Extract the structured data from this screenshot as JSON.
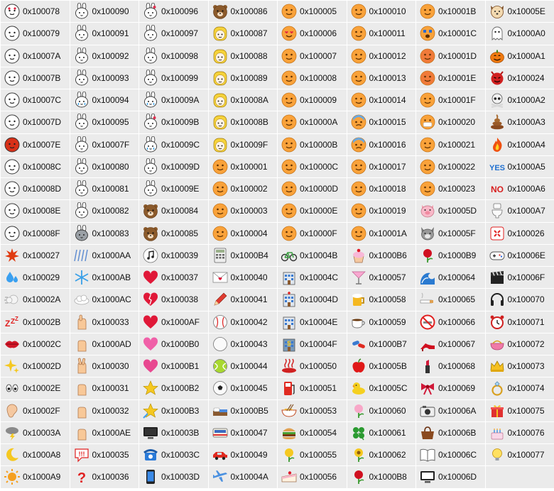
{
  "columns": [
    [
      "0x100078",
      "0x100079",
      "0x10007A",
      "0x10007B",
      "0x10007C",
      "0x10007D",
      "0x10007E",
      "0x10008C",
      "0x10008D",
      "0x10008E",
      "0x10008F",
      "0x100027",
      "0x100029",
      "0x10002A",
      "0x10002B",
      "0x10002C",
      "0x10002D",
      "0x10002E",
      "0x10002F",
      "0x10003A",
      "0x1000A8",
      "0x1000A9"
    ],
    [
      "0x100090",
      "0x100091",
      "0x100092",
      "0x100093",
      "0x100094",
      "0x100095",
      "0x10007F",
      "0x100080",
      "0x100081",
      "0x100082",
      "0x100083",
      "0x1000AA",
      "0x1000AB",
      "0x1000AC",
      "0x100033",
      "0x1000AD",
      "0x100030",
      "0x100031",
      "0x100032",
      "0x1000AE",
      "0x100035",
      "0x100036"
    ],
    [
      "0x100096",
      "0x100097",
      "0x100098",
      "0x100099",
      "0x10009A",
      "0x10009B",
      "0x10009C",
      "0x10009D",
      "0x10009E",
      "0x100084",
      "0x100085",
      "0x100039",
      "0x100037",
      "0x100038",
      "0x1000AF",
      "0x1000B0",
      "0x1000B1",
      "0x1000B2",
      "0x1000B3",
      "0x10003B",
      "0x10003C",
      "0x10003D"
    ],
    [
      "0x100086",
      "0x100087",
      "0x100088",
      "0x100089",
      "0x10008A",
      "0x10008B",
      "0x10009F",
      "0x100001",
      "0x100002",
      "0x100003",
      "0x100004",
      "0x1000B4",
      "0x100040",
      "0x100041",
      "0x100042",
      "0x100043",
      "0x100044",
      "0x100045",
      "0x1000B5",
      "0x100047",
      "0x100049",
      "0x10004A"
    ],
    [
      "0x100005",
      "0x100006",
      "0x100007",
      "0x100008",
      "0x100009",
      "0x10000A",
      "0x10000B",
      "0x10000C",
      "0x10000D",
      "0x10000E",
      "0x10000F",
      "0x10004B",
      "0x10004C",
      "0x10004D",
      "0x10004E",
      "0x10004F",
      "0x100050",
      "0x100051",
      "0x100053",
      "0x100054",
      "0x100055",
      "0x100056"
    ],
    [
      "0x100010",
      "0x100011",
      "0x100012",
      "0x100013",
      "0x100014",
      "0x100015",
      "0x100016",
      "0x100017",
      "0x100018",
      "0x100019",
      "0x10001A",
      "0x1000B6",
      "0x100057",
      "0x100058",
      "0x100059",
      "0x1000B7",
      "0x10005B",
      "0x10005C",
      "0x100060",
      "0x100061",
      "0x100062",
      "0x1000B8"
    ],
    [
      "0x10001B",
      "0x10001C",
      "0x10001D",
      "0x10001E",
      "0x10001F",
      "0x100020",
      "0x100021",
      "0x100022",
      "0x100023",
      "0x10005D",
      "0x10005F",
      "0x1000B9",
      "0x100064",
      "0x100065",
      "0x100066",
      "0x100067",
      "0x100068",
      "0x100069",
      "0x10006A",
      "0x10006B",
      "0x10006C",
      "0x10006D"
    ],
    [
      "0x10005E",
      "0x1000A0",
      "0x1000A1",
      "0x100024",
      "0x1000A2",
      "0x1000A3",
      "0x1000A4",
      "0x1000A5",
      "0x1000A6",
      "0x1000A7",
      "0x100026",
      "0x10006E",
      "0x10006F",
      "0x100070",
      "0x100071",
      "0x100072",
      "0x100073",
      "0x100074",
      "0x100075",
      "0x100076",
      "0x100077",
      ""
    ]
  ],
  "icons": [
    [
      "cony-heart-eyes-icon",
      "cony-angry-icon",
      "cony-crying-icon",
      "cony-cheering-icon",
      "cony-shocked-icon",
      "cony-scream-icon",
      "cony-red-angry-icon",
      "cony-sleepy-icon",
      "cony-smirk-icon",
      "cony-confused-icon",
      "cony-worried-icon",
      "explosion-icon",
      "sweat-drops-icon",
      "dash-cloud-icon",
      "zzz-icon",
      "lips-icon",
      "sparkles-icon",
      "eyes-icon",
      "ear-icon",
      "thunder-cloud-icon",
      "crescent-moon-icon",
      "sun-icon"
    ],
    [
      "cony-white-neutral-icon",
      "cony-white-shock-icon",
      "cony-white-sad-icon",
      "cony-white-nervous-icon",
      "cony-white-tears-icon",
      "cony-white-smile-icon",
      "bunny-angry-icon",
      "bunny-happy-icon",
      "bunny-wink-icon",
      "bunny-tongue-icon",
      "moon-bunny-icon",
      "rain-icon",
      "snowflake-icon",
      "cloud-icon",
      "thumbs-up-icon",
      "pointing-hand-icon",
      "victory-hand-icon",
      "open-hand-icon",
      "fist-icon",
      "clapping-hands-icon",
      "exclamation-speech-icon",
      "question-mark-icon"
    ],
    [
      "bunny-heart-icon",
      "bunny-sweat-icon",
      "bunny-surprised-icon",
      "bunny-dizzy-icon",
      "bunny-happy-tears-icon",
      "bunny-love-icon",
      "bunny-crying-icon",
      "bunny-smile-icon",
      "bunny-shock-icon",
      "brown-bear-icon",
      "brown-bear-surprised-icon",
      "music-note-bubble-icon",
      "heart-speech-icon",
      "broken-heart-icon",
      "red-heart-icon",
      "pink-hearts-icon",
      "double-hearts-icon",
      "yellow-star-icon",
      "shooting-star-icon",
      "computer-monitor-icon",
      "telephone-icon",
      "smartphone-icon"
    ],
    [
      "brown-bear-face-icon",
      "blonde-girl-icon",
      "blonde-girl-surprised-icon",
      "blonde-girl-scream-icon",
      "blonde-girl-tired-icon",
      "blonde-girl-love-icon",
      "blonde-girl-angry-icon",
      "orange-face-smile-icon",
      "orange-face-grin-icon",
      "orange-face-happy-icon",
      "orange-face-wink-icon",
      "calculator-icon",
      "love-letter-icon",
      "pencil-icon",
      "baseball-icon",
      "golf-ball-icon",
      "tennis-ball-icon",
      "soccer-ball-icon",
      "bed-icon",
      "train-icon",
      "red-car-icon",
      "airplane-icon"
    ],
    [
      "face-squint-icon",
      "face-heart-eyes-icon",
      "face-kiss-icon",
      "face-smile-icon",
      "face-kiss-lips-icon",
      "face-surprised-icon",
      "face-grin-icon",
      "face-tongue-icon",
      "face-tongue-wink-icon",
      "face-relieved-icon",
      "face-laugh-icon",
      "bicycle-icon",
      "building-icon",
      "hospital-icon",
      "school-icon",
      "bank-icon",
      "hot-spring-icon",
      "gas-pump-icon",
      "ramen-bowl-icon",
      "burger-icon",
      "tulip-icon",
      "cake-slice-icon"
    ],
    [
      "face-blush-icon",
      "face-content-icon",
      "face-unhappy-icon",
      "face-sad-icon",
      "face-relaxed-icon",
      "face-cold-sweat-icon",
      "face-fearful-icon",
      "face-weary-icon",
      "face-persevere-icon",
      "face-disappointed-icon",
      "face-joy-tears-icon",
      "cupcake-icon",
      "cocktail-icon",
      "beer-mug-icon",
      "coffee-cup-icon",
      "pills-icon",
      "red-apple-icon",
      "rubber-duck-icon",
      "cherry-blossom-icon",
      "four-leaf-clover-icon",
      "sunflower-icon",
      "rose-icon"
    ],
    [
      "face-dizzy-icon",
      "face-scream-icon",
      "face-angry-icon",
      "face-pouting-icon",
      "face-sweat-icon",
      "face-mask-icon",
      "face-neutral-icon",
      "face-flushed-icon",
      "face-sleepy-icon",
      "pig-face-icon",
      "wolf-face-icon",
      "red-rose-icon",
      "water-wave-icon",
      "cigarette-icon",
      "no-smoking-icon",
      "high-heel-icon",
      "lipstick-icon",
      "ribbon-bow-icon",
      "camera-icon",
      "handbag-icon",
      "open-book-icon",
      "television-icon"
    ],
    [
      "dog-face-icon",
      "ghost-icon",
      "pumpkin-icon",
      "devil-icon",
      "skull-icon",
      "poop-icon",
      "fire-icon",
      "yes-text-icon",
      "no-text-icon",
      "toilet-icon",
      "anger-symbol-icon",
      "game-controller-icon",
      "clapper-board-icon",
      "headphones-icon",
      "alarm-clock-icon",
      "purse-icon",
      "crown-icon",
      "ring-icon",
      "gift-icon",
      "birthday-cake-icon",
      "light-bulb-icon",
      ""
    ]
  ],
  "colors": {
    "cell_background": "#ebebeb",
    "grid_line": "#ffffff",
    "code_text": "#111111",
    "emoji_face": "#f9a23a",
    "bunny_white": "#ffffff",
    "bear_brown": "#8b5a2b",
    "girl_blonde": "#f5d23a",
    "red_accent": "#e02020",
    "yes_blue": "#1f6fd0",
    "no_red": "#d81e1e"
  }
}
